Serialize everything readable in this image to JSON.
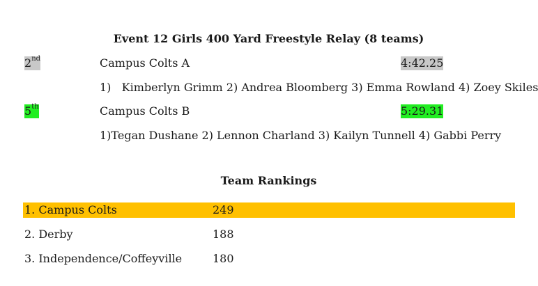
{
  "event": {
    "title": "Event 12 Girls 400 Yard Freestyle Relay (8 teams)",
    "entries": [
      {
        "place_num": "2",
        "place_suffix": "nd",
        "team": "Campus Colts A",
        "time": "4:42.25",
        "swimmers": "1)   Kimberlyn Grimm 2) Andrea Bloomberg 3) Emma Rowland 4) Zoey Skiles",
        "highlight": "#c8c8c8"
      },
      {
        "place_num": "5",
        "place_suffix": "th",
        "team": "Campus Colts B",
        "time": "5:29.31",
        "swimmers": "1)Tegan Dushane 2) Lennon Charland 3) Kailyn Tunnell 4) Gabbi Perry",
        "highlight": "#22ee22"
      }
    ]
  },
  "rankings": {
    "title": "Team Rankings",
    "highlight": "#ffc000",
    "rows": [
      {
        "team": "1. Campus Colts",
        "score": "249"
      },
      {
        "team": "2. Derby",
        "score": "188"
      },
      {
        "team": "3. Independence/Coffeyville",
        "score": "180"
      }
    ]
  }
}
